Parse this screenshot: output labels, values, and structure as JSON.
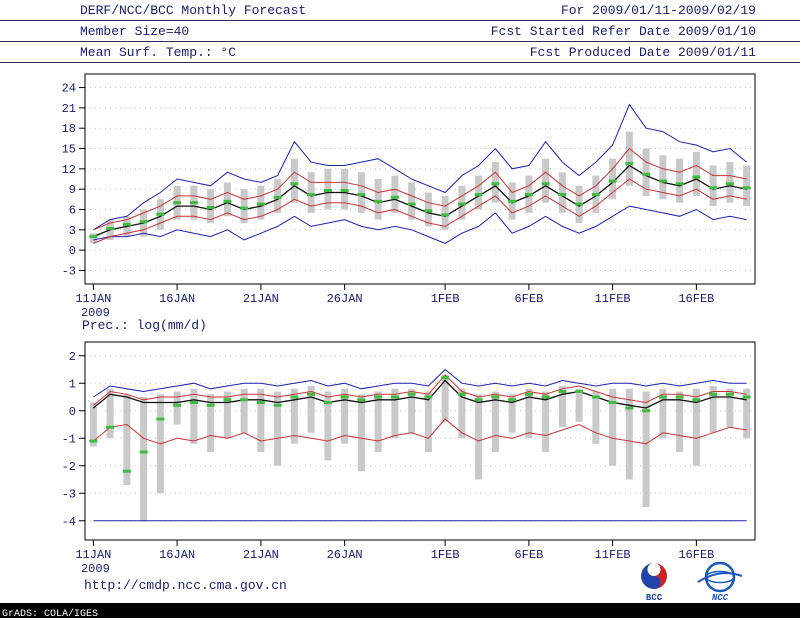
{
  "palette": {
    "text": "#1b1b6e",
    "axis": "#000000",
    "grid": "#c8c8c8",
    "bar": "#c9c9c9",
    "blue": "#2020b4",
    "red": "#cc3333",
    "black": "#101010",
    "green": "#3cbe3c"
  },
  "header": {
    "line1_left": "DERF/NCC/BCC Monthly Forecast",
    "line2_left": "Member Size=40",
    "line3_left": "Mean Surf. Temp.: °C",
    "line1_right": "For 2009/01/11-2009/02/19",
    "line2_right": "Fcst Started Refer Date 2009/01/10",
    "line3_right": "Fcst Produced Date 2009/01/11"
  },
  "footer": {
    "url": "http://cmdp.ncc.cma.gov.cn",
    "grads_credit": "GrADS: COLA/IGES",
    "logos": [
      {
        "label": "BCC"
      },
      {
        "label": "NCC"
      }
    ]
  },
  "chart_data": [
    {
      "type": "line",
      "name": "surface-temperature",
      "title": "Mean Surf. Temp.: °C",
      "ylabel": "°C",
      "axis_range": [
        -5,
        26
      ],
      "yticks": [
        -3,
        0,
        3,
        6,
        9,
        12,
        15,
        18,
        21,
        24
      ],
      "grid": "dotted-horizontal",
      "legend": "none",
      "n_days": 40,
      "x_start": "2009-01-11",
      "x_end": "2009-02-19",
      "x_tick_days": [
        0,
        5,
        10,
        15,
        21,
        26,
        31,
        36
      ],
      "x_tick_labels": [
        "11JAN",
        "16JAN",
        "21JAN",
        "26JAN",
        "1FEB",
        "6FEB",
        "11FEB",
        "16FEB"
      ],
      "x_sub_label": "2009",
      "bars": {
        "name": "ensemble-spread",
        "color": "#c9c9c9",
        "low": [
          1.0,
          1.5,
          2.0,
          2.0,
          3.0,
          4.5,
          4.5,
          4.0,
          5.0,
          4.0,
          4.5,
          5.5,
          7.0,
          5.5,
          6.0,
          6.0,
          5.5,
          4.5,
          5.5,
          4.5,
          3.5,
          3.0,
          4.5,
          6.0,
          7.0,
          4.5,
          5.5,
          7.0,
          5.5,
          4.0,
          5.5,
          7.5,
          9.5,
          8.0,
          7.5,
          7.0,
          8.0,
          6.5,
          7.0,
          6.5
        ],
        "high": [
          2.5,
          4.5,
          5.0,
          6.0,
          7.5,
          9.5,
          9.5,
          9.0,
          10.0,
          9.0,
          9.5,
          10.5,
          13.5,
          11.5,
          12.0,
          12.0,
          11.5,
          10.5,
          11.0,
          10.0,
          8.5,
          8.0,
          9.5,
          11.0,
          13.0,
          10.0,
          11.0,
          13.5,
          11.5,
          9.5,
          11.0,
          13.5,
          17.5,
          15.0,
          14.0,
          13.5,
          14.5,
          12.5,
          13.0,
          12.5
        ]
      },
      "series": [
        {
          "name": "ensemble-max",
          "color": "#2020b4",
          "width": 1,
          "values": [
            3.0,
            4.5,
            5.0,
            7.0,
            8.5,
            10.5,
            10.0,
            9.5,
            11.5,
            10.5,
            10.0,
            11.0,
            16.0,
            13.0,
            12.5,
            12.5,
            13.0,
            13.5,
            12.0,
            10.5,
            9.5,
            8.5,
            11.0,
            12.5,
            15.0,
            12.0,
            12.5,
            16.0,
            13.0,
            11.0,
            13.0,
            15.5,
            21.5,
            18.0,
            17.5,
            16.0,
            15.5,
            14.5,
            15.0,
            13.0
          ]
        },
        {
          "name": "ensemble-min",
          "color": "#2020b4",
          "width": 1,
          "values": [
            1.5,
            2.0,
            2.0,
            2.5,
            2.0,
            3.0,
            2.5,
            2.0,
            3.0,
            1.5,
            2.5,
            3.5,
            5.0,
            3.5,
            4.0,
            4.5,
            3.5,
            3.0,
            3.5,
            3.0,
            2.0,
            1.0,
            2.5,
            3.5,
            5.5,
            2.5,
            3.5,
            5.0,
            3.5,
            2.5,
            3.5,
            5.0,
            6.5,
            6.0,
            5.5,
            5.0,
            6.0,
            4.5,
            5.0,
            4.5
          ]
        },
        {
          "name": "upper-spread",
          "color": "#cc3333",
          "width": 1,
          "values": [
            3.0,
            4.0,
            4.5,
            5.5,
            6.5,
            8.0,
            8.0,
            7.5,
            8.5,
            7.5,
            8.0,
            9.0,
            11.5,
            10.0,
            10.0,
            10.0,
            9.5,
            8.5,
            9.0,
            8.0,
            7.0,
            6.5,
            8.0,
            9.5,
            11.5,
            8.5,
            9.5,
            11.5,
            9.5,
            8.0,
            9.5,
            12.0,
            15.0,
            13.0,
            12.0,
            11.5,
            12.5,
            11.0,
            11.0,
            10.5
          ]
        },
        {
          "name": "lower-spread",
          "color": "#cc3333",
          "width": 1,
          "values": [
            1.0,
            2.0,
            2.5,
            3.0,
            4.0,
            5.0,
            5.0,
            4.5,
            5.5,
            4.5,
            5.0,
            6.0,
            7.5,
            6.5,
            7.0,
            7.0,
            6.5,
            5.5,
            6.0,
            5.0,
            4.0,
            3.5,
            5.0,
            6.5,
            8.0,
            5.5,
            6.5,
            8.0,
            6.5,
            5.0,
            6.5,
            8.5,
            10.5,
            9.0,
            8.5,
            8.0,
            9.0,
            7.5,
            8.0,
            7.5
          ]
        },
        {
          "name": "ensemble-mean",
          "color": "#101010",
          "width": 1.3,
          "values": [
            2.0,
            3.0,
            3.5,
            4.0,
            5.0,
            6.5,
            6.5,
            6.0,
            7.0,
            6.0,
            6.5,
            7.5,
            9.5,
            8.0,
            8.5,
            8.5,
            8.0,
            7.0,
            7.5,
            6.5,
            5.5,
            5.0,
            6.5,
            8.0,
            9.5,
            7.0,
            8.0,
            9.5,
            8.0,
            6.5,
            8.0,
            10.0,
            12.5,
            11.0,
            10.0,
            9.5,
            10.5,
            9.0,
            9.5,
            9.0
          ]
        },
        {
          "name": "ensemble-median",
          "color": "#3cbe3c",
          "marker": "dash",
          "values": [
            2.0,
            3.2,
            3.8,
            4.2,
            5.3,
            7.0,
            7.0,
            6.3,
            7.2,
            6.2,
            6.8,
            7.8,
            9.8,
            8.2,
            8.8,
            8.8,
            8.2,
            7.2,
            7.8,
            6.8,
            5.8,
            5.2,
            6.8,
            8.2,
            9.8,
            7.2,
            8.2,
            9.8,
            8.2,
            6.8,
            8.2,
            10.2,
            12.8,
            11.2,
            10.2,
            9.8,
            10.8,
            9.2,
            9.8,
            9.2
          ]
        }
      ]
    },
    {
      "type": "line",
      "name": "precipitation",
      "title": "Prec.: log(mm/d)",
      "ylabel": "log(mm/d)",
      "axis_range": [
        -4.7,
        2.5
      ],
      "yticks": [
        -4,
        -3,
        -2,
        -1,
        0,
        1,
        2
      ],
      "grid": "dotted-horizontal",
      "legend": "none",
      "n_days": 40,
      "x_start": "2009-01-11",
      "x_end": "2009-02-19",
      "x_tick_days": [
        0,
        5,
        10,
        15,
        21,
        26,
        31,
        36
      ],
      "x_tick_labels": [
        "11JAN",
        "16JAN",
        "21JAN",
        "26JAN",
        "1FEB",
        "6FEB",
        "11FEB",
        "16FEB"
      ],
      "x_sub_label": "2009",
      "bars": {
        "name": "ensemble-spread",
        "color": "#c9c9c9",
        "low": [
          -1.3,
          -1.0,
          -2.7,
          -4.0,
          -3.0,
          -0.5,
          -1.2,
          -1.5,
          -1.0,
          -0.8,
          -1.5,
          -2.0,
          -1.2,
          -0.8,
          -1.8,
          -1.2,
          -2.2,
          -1.5,
          -1.0,
          -0.8,
          -1.5,
          -0.4,
          -1.0,
          -2.5,
          -1.5,
          -0.8,
          -1.0,
          -1.5,
          -0.6,
          -0.4,
          -1.2,
          -2.0,
          -2.5,
          -3.5,
          -1.0,
          -1.5,
          -2.0,
          -0.8,
          -0.6,
          -1.0
        ],
        "high": [
          0.3,
          0.8,
          0.6,
          0.5,
          0.6,
          0.7,
          0.8,
          0.6,
          0.7,
          0.8,
          0.8,
          0.7,
          0.8,
          0.9,
          0.7,
          0.8,
          0.6,
          0.7,
          0.8,
          0.8,
          0.7,
          1.3,
          0.8,
          0.6,
          0.7,
          0.6,
          0.8,
          0.7,
          0.9,
          0.8,
          0.7,
          0.8,
          0.8,
          0.7,
          0.8,
          0.7,
          0.8,
          0.9,
          0.8,
          0.8
        ]
      },
      "series": [
        {
          "name": "ensemble-max",
          "color": "#2020b4",
          "width": 1,
          "values": [
            0.5,
            0.9,
            0.8,
            0.7,
            0.8,
            0.9,
            1.0,
            0.8,
            0.9,
            1.0,
            1.0,
            0.9,
            1.0,
            1.1,
            0.9,
            1.0,
            0.8,
            0.9,
            1.0,
            1.0,
            0.9,
            1.5,
            1.0,
            0.9,
            1.0,
            0.9,
            1.0,
            0.9,
            1.1,
            1.0,
            0.9,
            1.0,
            1.0,
            0.9,
            1.0,
            0.9,
            1.0,
            1.1,
            1.0,
            1.0
          ]
        },
        {
          "name": "ensemble-min",
          "color": "#2020b4",
          "width": 1,
          "values": [
            -4.0,
            -4.0,
            -4.0,
            -4.0,
            -4.0,
            -4.0,
            -4.0,
            -4.0,
            -4.0,
            -4.0,
            -4.0,
            -4.0,
            -4.0,
            -4.0,
            -4.0,
            -4.0,
            -4.0,
            -4.0,
            -4.0,
            -4.0,
            -4.0,
            -4.0,
            -4.0,
            -4.0,
            -4.0,
            -4.0,
            -4.0,
            -4.0,
            -4.0,
            -4.0,
            -4.0,
            -4.0,
            -4.0,
            -4.0,
            -4.0,
            -4.0,
            -4.0,
            -4.0,
            -4.0,
            -4.0
          ]
        },
        {
          "name": "upper-spread",
          "color": "#cc3333",
          "width": 1,
          "values": [
            0.2,
            0.7,
            0.6,
            0.4,
            0.5,
            0.5,
            0.6,
            0.5,
            0.5,
            0.6,
            0.6,
            0.5,
            0.6,
            0.7,
            0.5,
            0.6,
            0.5,
            0.6,
            0.6,
            0.7,
            0.6,
            1.3,
            0.7,
            0.5,
            0.6,
            0.5,
            0.7,
            0.6,
            0.8,
            0.9,
            0.7,
            0.5,
            0.4,
            0.3,
            0.6,
            0.6,
            0.5,
            0.7,
            0.7,
            0.6
          ]
        },
        {
          "name": "lower-spread",
          "color": "#cc3333",
          "width": 1,
          "values": [
            -1.1,
            -0.6,
            -0.5,
            -1.0,
            -1.2,
            -1.0,
            -1.1,
            -0.9,
            -1.0,
            -0.8,
            -1.1,
            -1.0,
            -0.9,
            -1.0,
            -1.1,
            -0.9,
            -1.0,
            -1.1,
            -0.9,
            -0.8,
            -1.0,
            -0.3,
            -0.8,
            -1.1,
            -0.9,
            -1.0,
            -0.8,
            -0.9,
            -0.7,
            -0.5,
            -0.8,
            -1.0,
            -1.1,
            -1.2,
            -0.8,
            -0.9,
            -1.0,
            -0.8,
            -0.6,
            -0.7
          ]
        },
        {
          "name": "ensemble-mean",
          "color": "#101010",
          "width": 1.3,
          "values": [
            0.1,
            0.6,
            0.5,
            0.3,
            0.3,
            0.3,
            0.4,
            0.3,
            0.3,
            0.4,
            0.4,
            0.3,
            0.4,
            0.5,
            0.3,
            0.4,
            0.3,
            0.4,
            0.4,
            0.5,
            0.4,
            1.1,
            0.5,
            0.3,
            0.4,
            0.3,
            0.5,
            0.4,
            0.6,
            0.7,
            0.5,
            0.3,
            0.2,
            0.1,
            0.4,
            0.4,
            0.3,
            0.5,
            0.5,
            0.4
          ]
        },
        {
          "name": "ensemble-median",
          "color": "#3cbe3c",
          "marker": "dash",
          "values": [
            -1.1,
            -0.6,
            -2.2,
            -1.5,
            -0.3,
            0.2,
            0.3,
            0.2,
            0.4,
            0.4,
            0.3,
            0.2,
            0.5,
            0.6,
            0.3,
            0.5,
            0.4,
            0.5,
            0.5,
            0.6,
            0.5,
            1.2,
            0.6,
            0.4,
            0.5,
            0.4,
            0.6,
            0.5,
            0.7,
            0.7,
            0.5,
            0.3,
            0.1,
            0.0,
            0.5,
            0.5,
            0.4,
            0.6,
            0.6,
            0.5
          ]
        }
      ]
    }
  ]
}
